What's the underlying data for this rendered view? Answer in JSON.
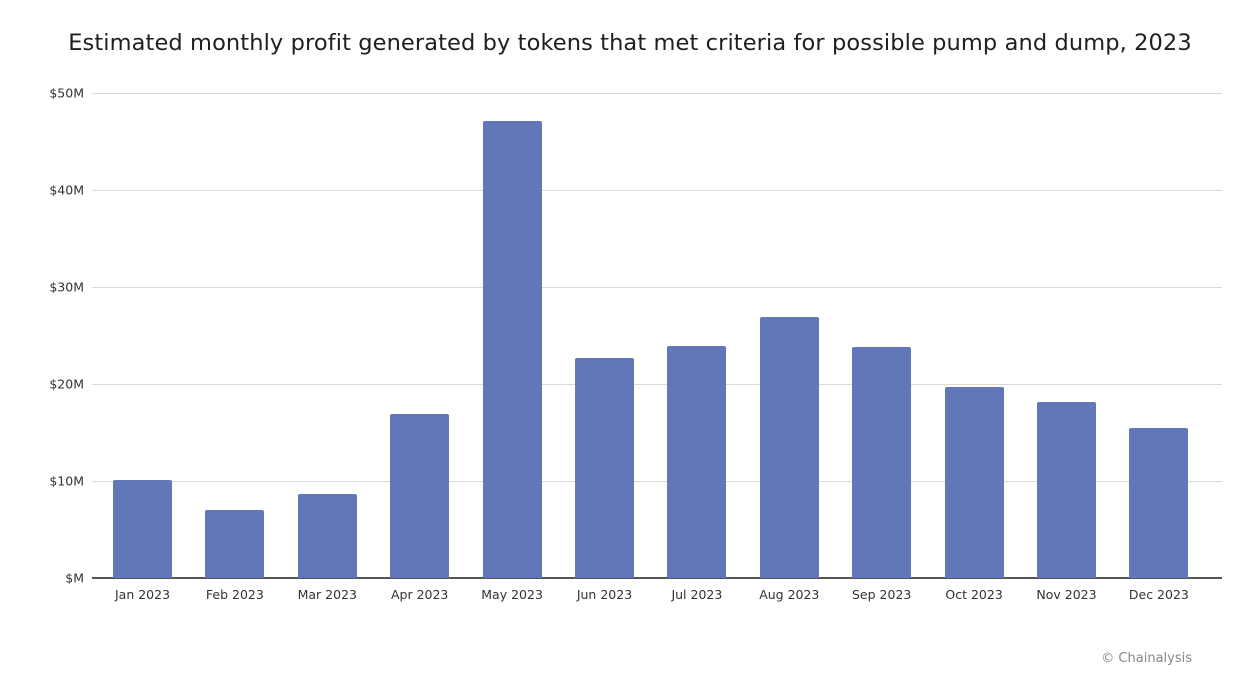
{
  "chart_data": {
    "type": "bar",
    "title": "Estimated monthly profit generated by tokens that met criteria for possible pump and dump, 2023",
    "xlabel": "",
    "ylabel": "",
    "categories": [
      "Jan 2023",
      "Feb 2023",
      "Mar 2023",
      "Apr 2023",
      "May 2023",
      "Jun 2023",
      "Jul 2023",
      "Aug 2023",
      "Sep 2023",
      "Oct 2023",
      "Nov 2023",
      "Dec 2023"
    ],
    "series": [
      {
        "name": "Estimated monthly profit ($M)",
        "color": "#6277b9",
        "values": [
          10.1,
          7.0,
          8.7,
          16.9,
          47.1,
          22.7,
          23.9,
          26.9,
          23.8,
          19.7,
          18.1,
          15.5
        ]
      }
    ],
    "yticks": [
      "$M",
      "$10M",
      "$20M",
      "$30M",
      "$40M",
      "$50M"
    ],
    "ylim": [
      0,
      50
    ],
    "grid": true,
    "legend": "none"
  },
  "footer": {
    "credit": "© Chainalysis"
  }
}
